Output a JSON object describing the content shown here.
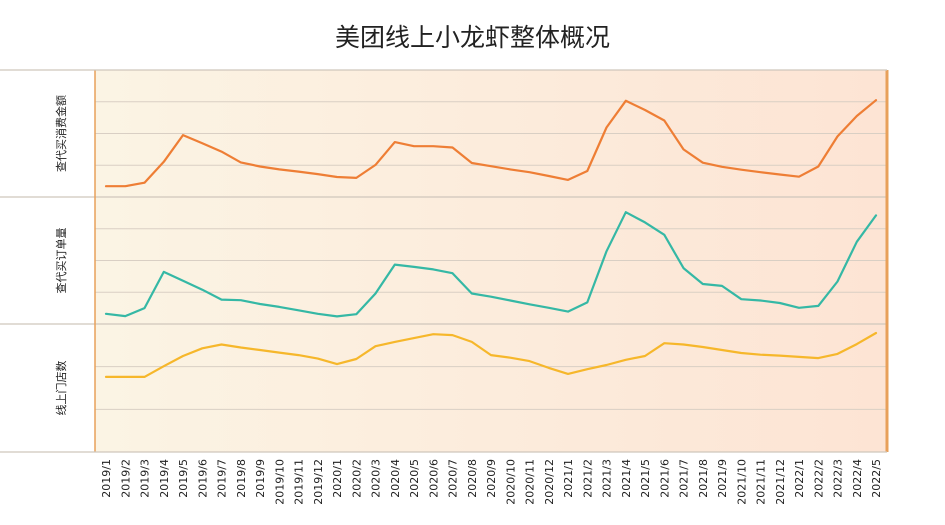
{
  "title": "美团线上小龙虾整体概况",
  "colors": {
    "panel_left": "#fbf4e4",
    "panel_right": "#fde4d4",
    "border": "#e8a05a",
    "grid": "#d9cfc4",
    "divider": "#cfc6bc",
    "series_1": "#ee7e35",
    "series_2": "#35b8a5",
    "series_3": "#f6b72b"
  },
  "chart_data": {
    "type": "line",
    "layout": "three stacked panels sharing x axis",
    "title": "美团线上小龙虾整体概况",
    "x": [
      "2019/1",
      "2019/2",
      "2019/3",
      "2019/4",
      "2019/5",
      "2019/6",
      "2019/7",
      "2019/8",
      "2019/9",
      "2019/10",
      "2019/11",
      "2019/12",
      "2020/1",
      "2020/2",
      "2020/3",
      "2020/4",
      "2020/5",
      "2020/6",
      "2020/7",
      "2020/8",
      "2020/9",
      "2020/10",
      "2020/11",
      "2020/12",
      "2021/1",
      "2021/2",
      "2021/3",
      "2021/4",
      "2021/5",
      "2021/6",
      "2021/7",
      "2021/8",
      "2021/9",
      "2021/10",
      "2021/11",
      "2021/12",
      "2022/1",
      "2022/2",
      "2022/3",
      "2022/4",
      "2022/5"
    ],
    "x_tick_labels": [
      "2019/1",
      "2019/2",
      "2019/3",
      "2019/4",
      "2019/5",
      "2019/6",
      "2019/7",
      "2019/8",
      "2019/9",
      "2019/10",
      "2019/11",
      "2019/12",
      "2020/1",
      "2020/2",
      "2020/3",
      "2020/4",
      "2020/5",
      "2020/6",
      "2020/7",
      "2020/8",
      "2020/9",
      "2020/10",
      "2020/11",
      "2020/12",
      "2021/1",
      "2021/2",
      "2021/3",
      "2021/4",
      "2021/5",
      "2021/6",
      "2021/7",
      "2021/8",
      "2021/9",
      "2021/10",
      "2021/11",
      "2021/12",
      "2022/1",
      "2022/2",
      "2022/3",
      "2022/4",
      "2022/5"
    ],
    "y_tick_labels": "none",
    "grid": true,
    "panels": [
      {
        "ylabel": "查代买消费金额",
        "ylim": [
          0,
          4
        ],
        "series": [
          {
            "values": [
              0.34,
              0.34,
              0.45,
              1.11,
              1.95,
              1.69,
              1.43,
              1.09,
              0.96,
              0.87,
              0.8,
              0.72,
              0.63,
              0.6,
              1.01,
              1.73,
              1.6,
              1.6,
              1.56,
              1.07,
              0.97,
              0.87,
              0.78,
              0.66,
              0.54,
              0.82,
              2.19,
              3.03,
              2.74,
              2.41,
              1.5,
              1.08,
              0.95,
              0.86,
              0.78,
              0.71,
              0.64,
              0.96,
              1.91,
              2.55,
              3.05
            ]
          }
        ]
      },
      {
        "ylabel": "查代买订单量",
        "ylim": [
          0,
          4
        ],
        "series": [
          {
            "values": [
              0.32,
              0.25,
              0.5,
              1.64,
              1.36,
              1.08,
              0.77,
              0.75,
              0.63,
              0.54,
              0.43,
              0.32,
              0.24,
              0.31,
              0.96,
              1.87,
              1.8,
              1.72,
              1.6,
              0.96,
              0.86,
              0.74,
              0.62,
              0.51,
              0.39,
              0.68,
              2.29,
              3.52,
              3.2,
              2.81,
              1.76,
              1.26,
              1.2,
              0.78,
              0.74,
              0.66,
              0.51,
              0.57,
              1.34,
              2.59,
              3.42
            ]
          }
        ]
      },
      {
        "ylabel": "线上门店数",
        "ylim": [
          0,
          3
        ],
        "series": [
          {
            "values": [
              1.76,
              1.76,
              1.76,
              2.01,
              2.25,
              2.43,
              2.52,
              2.45,
              2.39,
              2.33,
              2.27,
              2.19,
              2.06,
              2.18,
              2.48,
              2.58,
              2.67,
              2.76,
              2.74,
              2.58,
              2.27,
              2.21,
              2.13,
              1.97,
              1.83,
              1.94,
              2.04,
              2.16,
              2.25,
              2.55,
              2.52,
              2.46,
              2.39,
              2.32,
              2.28,
              2.26,
              2.23,
              2.2,
              2.3,
              2.53,
              2.79
            ]
          }
        ]
      }
    ]
  }
}
